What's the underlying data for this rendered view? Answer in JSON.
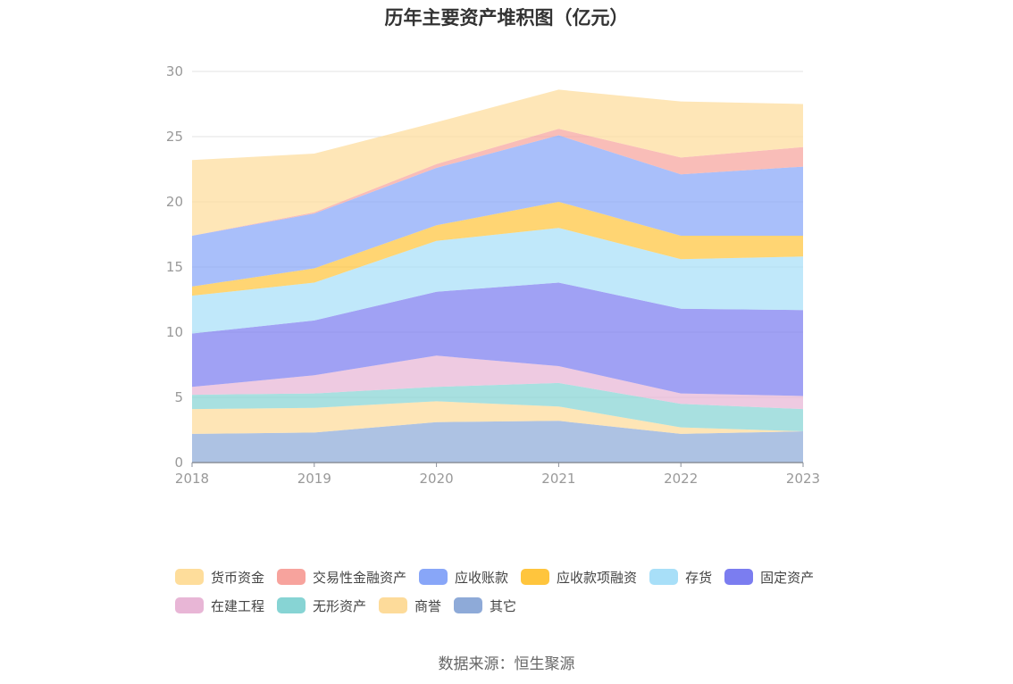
{
  "chart_data": {
    "type": "area",
    "stacked": true,
    "title": "历年主要资产堆积图（亿元）",
    "categories": [
      "2018",
      "2019",
      "2020",
      "2021",
      "2022",
      "2023"
    ],
    "ylim": [
      0,
      30
    ],
    "yticks": [
      "0",
      "5",
      "10",
      "15",
      "20",
      "25",
      "30"
    ],
    "grid": true,
    "legend_position": "bottom",
    "series": [
      {
        "name": "其它",
        "color": "#8eaad8",
        "values": [
          2.2,
          2.3,
          3.1,
          3.2,
          2.2,
          2.4
        ]
      },
      {
        "name": "商誉",
        "color": "#fddb9a",
        "values": [
          1.9,
          1.9,
          1.6,
          1.1,
          0.5,
          0.0
        ]
      },
      {
        "name": "无形资产",
        "color": "#87d4d4",
        "values": [
          1.1,
          1.1,
          1.1,
          1.8,
          1.8,
          1.7
        ]
      },
      {
        "name": "在建工程",
        "color": "#e8b6d6",
        "values": [
          0.6,
          1.4,
          2.4,
          1.3,
          0.8,
          1.0
        ]
      },
      {
        "name": "固定资产",
        "color": "#7b7df0",
        "values": [
          4.1,
          4.2,
          4.9,
          6.4,
          6.5,
          6.6
        ]
      },
      {
        "name": "存货",
        "color": "#a8dff8",
        "values": [
          2.9,
          2.9,
          3.9,
          4.2,
          3.8,
          4.1
        ]
      },
      {
        "name": "应收款项融资",
        "color": "#ffc53d",
        "values": [
          0.7,
          1.1,
          1.2,
          2.0,
          1.8,
          1.6
        ]
      },
      {
        "name": "应收账款",
        "color": "#88a6f8",
        "values": [
          3.9,
          4.2,
          4.4,
          5.1,
          4.7,
          5.3
        ]
      },
      {
        "name": "交易性金融资产",
        "color": "#f7a39d",
        "values": [
          0.0,
          0.1,
          0.3,
          0.5,
          1.3,
          1.5
        ]
      },
      {
        "name": "货币资金",
        "color": "#fedd9b",
        "values": [
          5.8,
          4.5,
          3.2,
          3.0,
          4.3,
          3.3
        ]
      }
    ]
  },
  "legend": {
    "row1": [
      {
        "label": "货币资金",
        "color": "#fedd9b"
      },
      {
        "label": "交易性金融资产",
        "color": "#f7a39d"
      },
      {
        "label": "应收账款",
        "color": "#88a6f8"
      },
      {
        "label": "应收款项融资",
        "color": "#ffc53d"
      },
      {
        "label": "存货",
        "color": "#a8dff8"
      },
      {
        "label": "固定资产",
        "color": "#7b7df0"
      }
    ],
    "row2": [
      {
        "label": "在建工程",
        "color": "#e8b6d6"
      },
      {
        "label": "无形资产",
        "color": "#87d4d4"
      },
      {
        "label": "商誉",
        "color": "#fddb9a"
      },
      {
        "label": "其它",
        "color": "#8eaad8"
      }
    ]
  },
  "source": "数据来源：恒生聚源"
}
